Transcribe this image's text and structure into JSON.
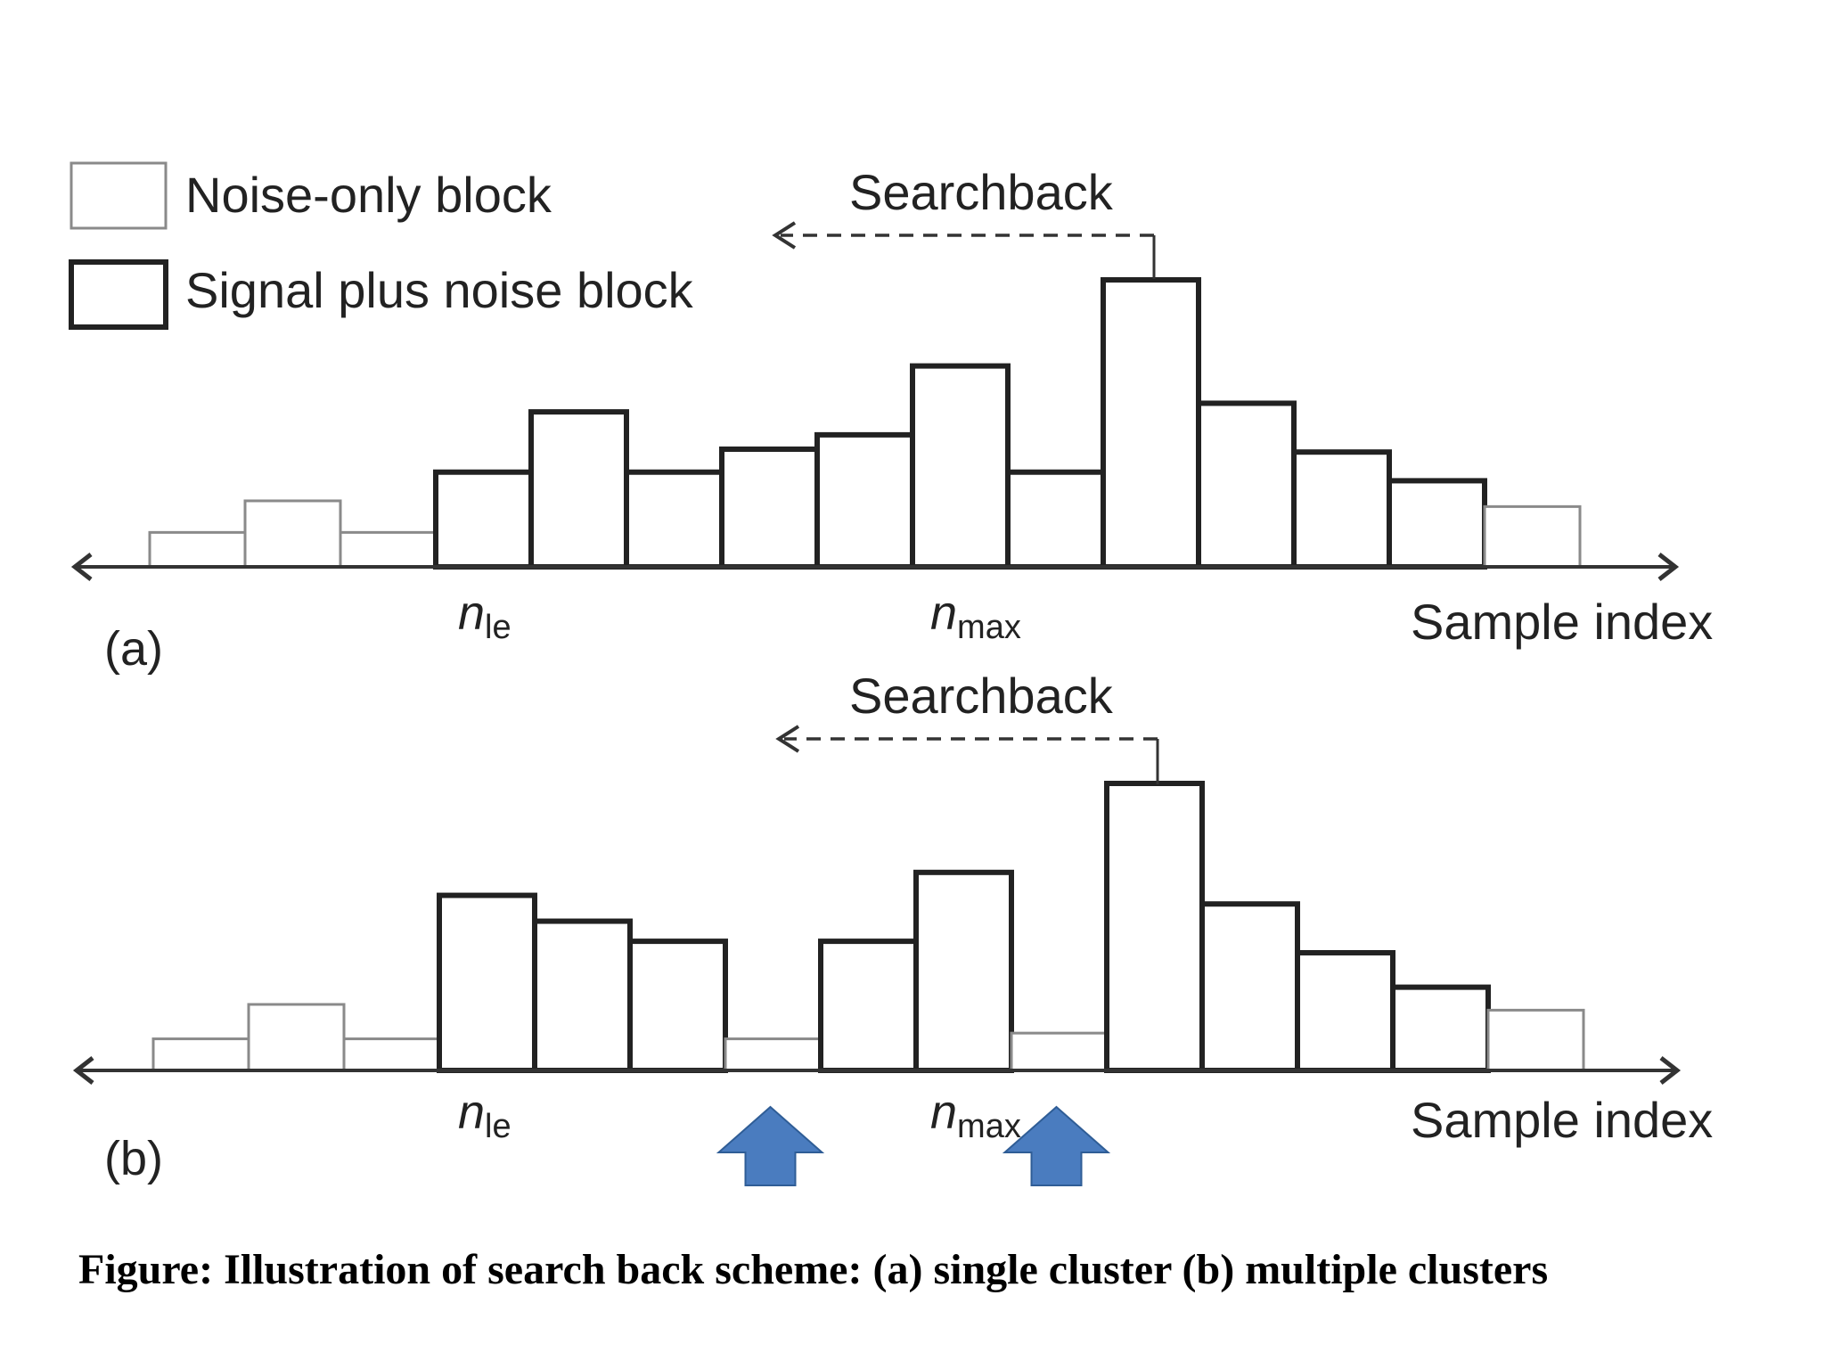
{
  "legend": {
    "noise_only": "Noise-only block",
    "signal_plus_noise": "Signal plus noise block"
  },
  "searchback_label": "Searchback",
  "axis_label": "Sample index",
  "marker_n": "n",
  "marker_le": "le",
  "marker_max": "max",
  "panels": [
    {
      "id": "a",
      "label": "(a)",
      "blocks": [
        {
          "h": 0.12,
          "signal": false
        },
        {
          "h": 0.23,
          "signal": false
        },
        {
          "h": 0.12,
          "signal": false
        },
        {
          "h": 0.33,
          "signal": true
        },
        {
          "h": 0.54,
          "signal": true
        },
        {
          "h": 0.33,
          "signal": true
        },
        {
          "h": 0.41,
          "signal": true
        },
        {
          "h": 0.46,
          "signal": true
        },
        {
          "h": 0.7,
          "signal": true
        },
        {
          "h": 0.33,
          "signal": true
        },
        {
          "h": 1.0,
          "signal": true
        },
        {
          "h": 0.57,
          "signal": true
        },
        {
          "h": 0.4,
          "signal": true
        },
        {
          "h": 0.3,
          "signal": true
        },
        {
          "h": 0.21,
          "signal": false
        }
      ],
      "le_index": 3,
      "max_index": 10,
      "arrows_below": []
    },
    {
      "id": "b",
      "label": "(b)",
      "blocks": [
        {
          "h": 0.11,
          "signal": false
        },
        {
          "h": 0.23,
          "signal": false
        },
        {
          "h": 0.11,
          "signal": false
        },
        {
          "h": 0.61,
          "signal": true
        },
        {
          "h": 0.52,
          "signal": true
        },
        {
          "h": 0.45,
          "signal": true
        },
        {
          "h": 0.11,
          "signal": false
        },
        {
          "h": 0.45,
          "signal": true
        },
        {
          "h": 0.69,
          "signal": true
        },
        {
          "h": 0.13,
          "signal": false
        },
        {
          "h": 1.0,
          "signal": true
        },
        {
          "h": 0.58,
          "signal": true
        },
        {
          "h": 0.41,
          "signal": true
        },
        {
          "h": 0.29,
          "signal": true
        },
        {
          "h": 0.21,
          "signal": false
        }
      ],
      "le_index": 3,
      "max_index": 10,
      "arrows_below": [
        6,
        9
      ]
    }
  ],
  "colors": {
    "signal_stroke": "#222222",
    "noise_stroke": "#8a8a8a",
    "axis": "#333333",
    "arrow_fill": "#4a7cbf",
    "arrow_stroke": "#2f5d96"
  },
  "caption": "Figure: Illustration of search back scheme: (a) single cluster (b) multiple clusters"
}
